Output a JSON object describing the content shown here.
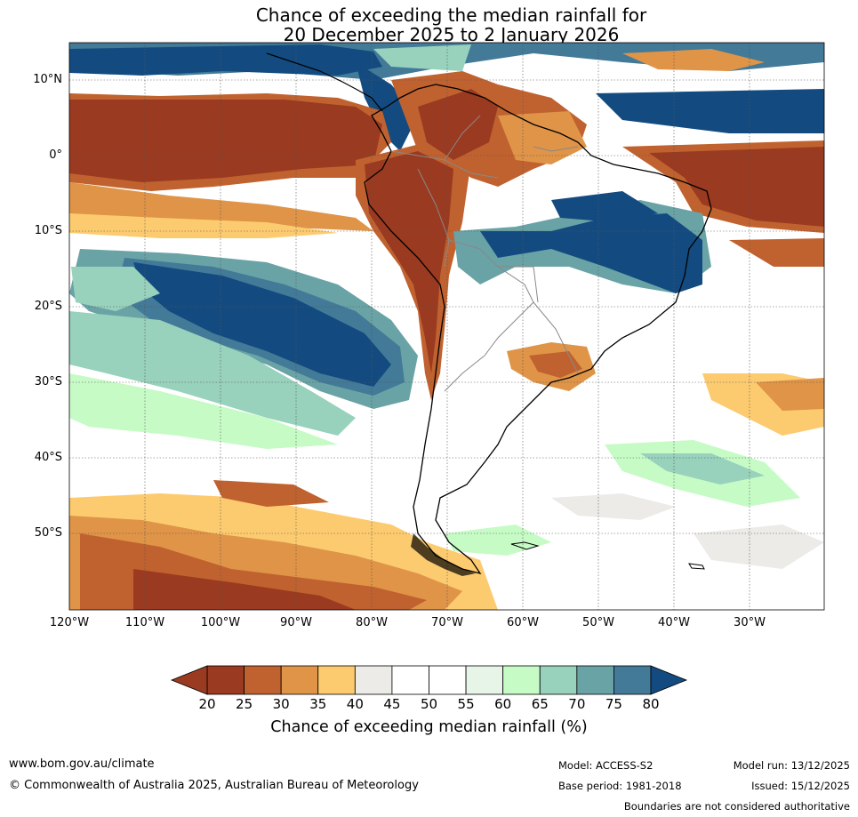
{
  "title": {
    "line1": "Chance of exceeding the median rainfall for",
    "line2": "20 December 2025 to 2 January 2026"
  },
  "map": {
    "region": "South America",
    "lat_labels": [
      "10°N",
      "0°",
      "10°S",
      "20°S",
      "30°S",
      "40°S",
      "50°S"
    ],
    "lon_labels": [
      "120°W",
      "110°W",
      "100°W",
      "90°W",
      "80°W",
      "70°W",
      "60°W",
      "50°W",
      "40°W",
      "30°W"
    ],
    "icons": {
      "coastline": "coastline-icon",
      "borders": "country-border-icon"
    }
  },
  "colorbar": {
    "label": "Chance of exceeding median rainfall (%)",
    "ticks": [
      "20",
      "25",
      "30",
      "35",
      "40",
      "45",
      "50",
      "55",
      "60",
      "65",
      "70",
      "75",
      "80"
    ],
    "colors": [
      "#9a3a21",
      "#c0622f",
      "#df9448",
      "#fdcb6f",
      "#ecebe8",
      "#ffffff",
      "#ffffff",
      "#e7f5e9",
      "#c6fbc6",
      "#98d1bc",
      "#6aa3a6",
      "#427a98"
    ],
    "under_color": "#9a3a21",
    "over_color": "#134b80"
  },
  "footer": {
    "website": "www.bom.gov.au/climate",
    "copyright": "© Commonwealth of Australia 2025, Australian Bureau of Meteorology",
    "model": "Model: ACCESS-S2",
    "base_period": "Base period: 1981-2018",
    "model_run": "Model run: 13/12/2025",
    "issued": "Issued: 15/12/2025",
    "disclaimer": "Boundaries are not considered authoritative"
  }
}
